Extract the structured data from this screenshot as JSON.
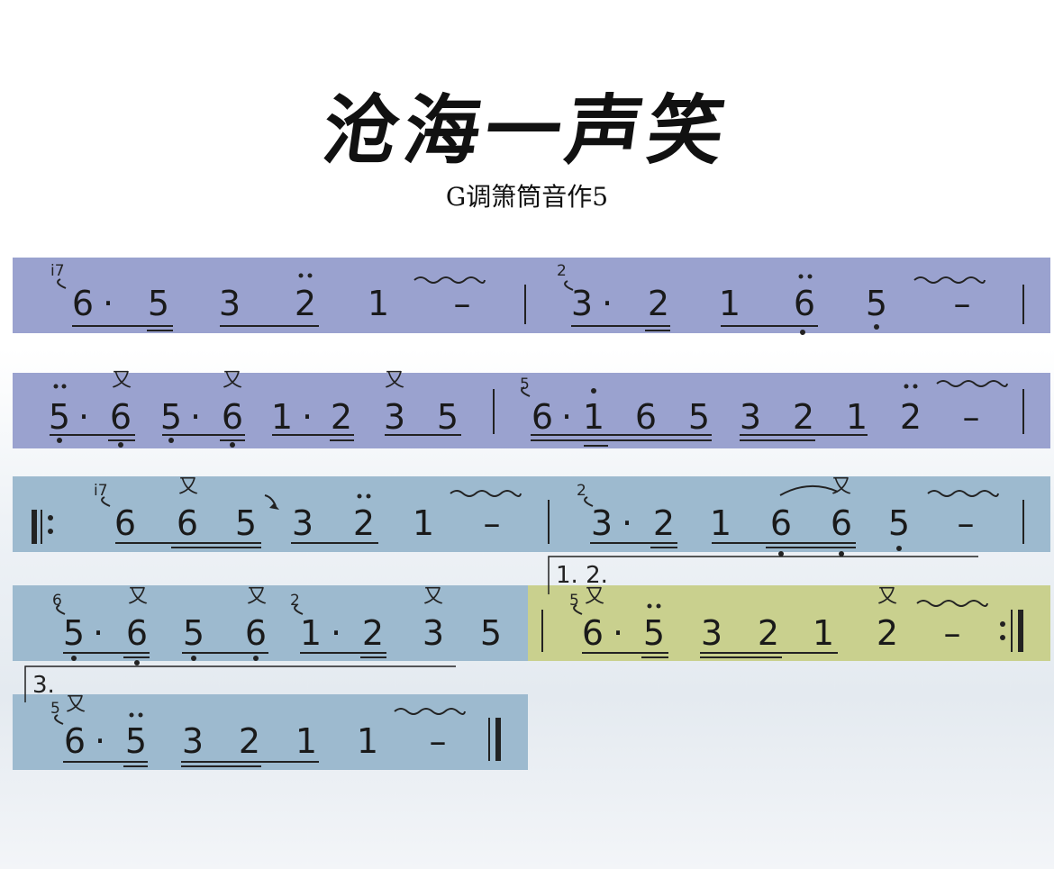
{
  "title": "沧海一声笑",
  "subtitle": "G调箫筒音作5",
  "endings": {
    "first": "1. 2.",
    "third": "3."
  },
  "rows": [
    {
      "notes": [
        {
          "t": "6",
          "x": 92
        },
        {
          "t": "·",
          "x": 120
        },
        {
          "t": "5",
          "x": 176
        },
        {
          "t": "3",
          "x": 255
        },
        {
          "t": "2",
          "x": 339
        },
        {
          "t": "1",
          "x": 420
        },
        {
          "t": "–",
          "x": 513
        },
        {
          "t": "3",
          "x": 646
        },
        {
          "t": "·",
          "x": 674
        },
        {
          "t": "2",
          "x": 731
        },
        {
          "t": "1",
          "x": 810
        },
        {
          "t": "6",
          "x": 893
        },
        {
          "t": "5",
          "x": 973
        },
        {
          "t": "–",
          "x": 1068
        }
      ],
      "graces": [
        {
          "t": "i7",
          "x": 56
        },
        {
          "t": "2",
          "x": 618
        }
      ]
    },
    {
      "notes": [
        {
          "t": "5",
          "x": 66
        },
        {
          "t": "·",
          "x": 93
        },
        {
          "t": "6",
          "x": 134
        },
        {
          "t": "5",
          "x": 190
        },
        {
          "t": "·",
          "x": 217
        },
        {
          "t": "6",
          "x": 258
        },
        {
          "t": "1",
          "x": 313
        },
        {
          "t": "·",
          "x": 341
        },
        {
          "t": "2",
          "x": 379
        },
        {
          "t": "3",
          "x": 438
        },
        {
          "t": "5",
          "x": 497
        },
        {
          "t": "6",
          "x": 602
        },
        {
          "t": "·",
          "x": 629
        },
        {
          "t": "1",
          "x": 659
        },
        {
          "t": "6",
          "x": 717
        },
        {
          "t": "5",
          "x": 776
        },
        {
          "t": "3",
          "x": 833
        },
        {
          "t": "2",
          "x": 892
        },
        {
          "t": "1",
          "x": 951
        },
        {
          "t": "2",
          "x": 1011
        },
        {
          "t": "–",
          "x": 1078
        }
      ],
      "graces": [
        {
          "t": "5",
          "x": 577
        }
      ],
      "marks": [
        {
          "t": "又",
          "x": 135
        },
        {
          "t": "又",
          "x": 258
        },
        {
          "t": "又",
          "x": 438
        }
      ]
    },
    {
      "notes": [
        {
          "t": "6",
          "x": 139
        },
        {
          "t": "6",
          "x": 208
        },
        {
          "t": "5",
          "x": 273
        },
        {
          "t": "3",
          "x": 336
        },
        {
          "t": "2",
          "x": 404
        },
        {
          "t": "1",
          "x": 470
        },
        {
          "t": "–",
          "x": 546
        },
        {
          "t": "3",
          "x": 668
        },
        {
          "t": "·",
          "x": 696
        },
        {
          "t": "2",
          "x": 737
        },
        {
          "t": "1",
          "x": 800
        },
        {
          "t": "6",
          "x": 867
        },
        {
          "t": "6",
          "x": 934
        },
        {
          "t": "5",
          "x": 998
        },
        {
          "t": "–",
          "x": 1072
        }
      ],
      "graces": [
        {
          "t": "i7",
          "x": 104
        },
        {
          "t": "2",
          "x": 640
        }
      ],
      "marks": [
        {
          "t": "又",
          "x": 209
        },
        {
          "t": "又",
          "x": 934
        }
      ]
    },
    {
      "notes": [
        {
          "t": "5",
          "x": 82
        },
        {
          "t": "·",
          "x": 109
        },
        {
          "t": "6",
          "x": 152
        },
        {
          "t": "5",
          "x": 215
        },
        {
          "t": "6",
          "x": 284
        },
        {
          "t": "1",
          "x": 345
        },
        {
          "t": "·",
          "x": 373
        },
        {
          "t": "2",
          "x": 414
        },
        {
          "t": "3",
          "x": 481
        },
        {
          "t": "5",
          "x": 545
        },
        {
          "t": "6",
          "x": 658
        },
        {
          "t": "·",
          "x": 686
        },
        {
          "t": "5",
          "x": 726
        },
        {
          "t": "3",
          "x": 790
        },
        {
          "t": "2",
          "x": 853
        },
        {
          "t": "1",
          "x": 914
        },
        {
          "t": "2",
          "x": 985
        },
        {
          "t": "–",
          "x": 1057
        }
      ],
      "graces": [
        {
          "t": "6",
          "x": 58
        },
        {
          "t": "2",
          "x": 322
        },
        {
          "t": "5",
          "x": 632
        }
      ],
      "marks": [
        {
          "t": "又",
          "x": 153
        },
        {
          "t": "又",
          "x": 285
        },
        {
          "t": "又",
          "x": 481
        },
        {
          "t": "又",
          "x": 660
        },
        {
          "t": "又",
          "x": 985
        }
      ]
    },
    {
      "notes": [
        {
          "t": "6",
          "x": 83
        },
        {
          "t": "·",
          "x": 111
        },
        {
          "t": "5",
          "x": 151
        },
        {
          "t": "3",
          "x": 214
        },
        {
          "t": "2",
          "x": 277
        },
        {
          "t": "1",
          "x": 340
        },
        {
          "t": "1",
          "x": 408
        },
        {
          "t": "–",
          "x": 486
        }
      ],
      "graces": [
        {
          "t": "5",
          "x": 56
        }
      ],
      "marks": [
        {
          "t": "又",
          "x": 84
        }
      ]
    }
  ]
}
